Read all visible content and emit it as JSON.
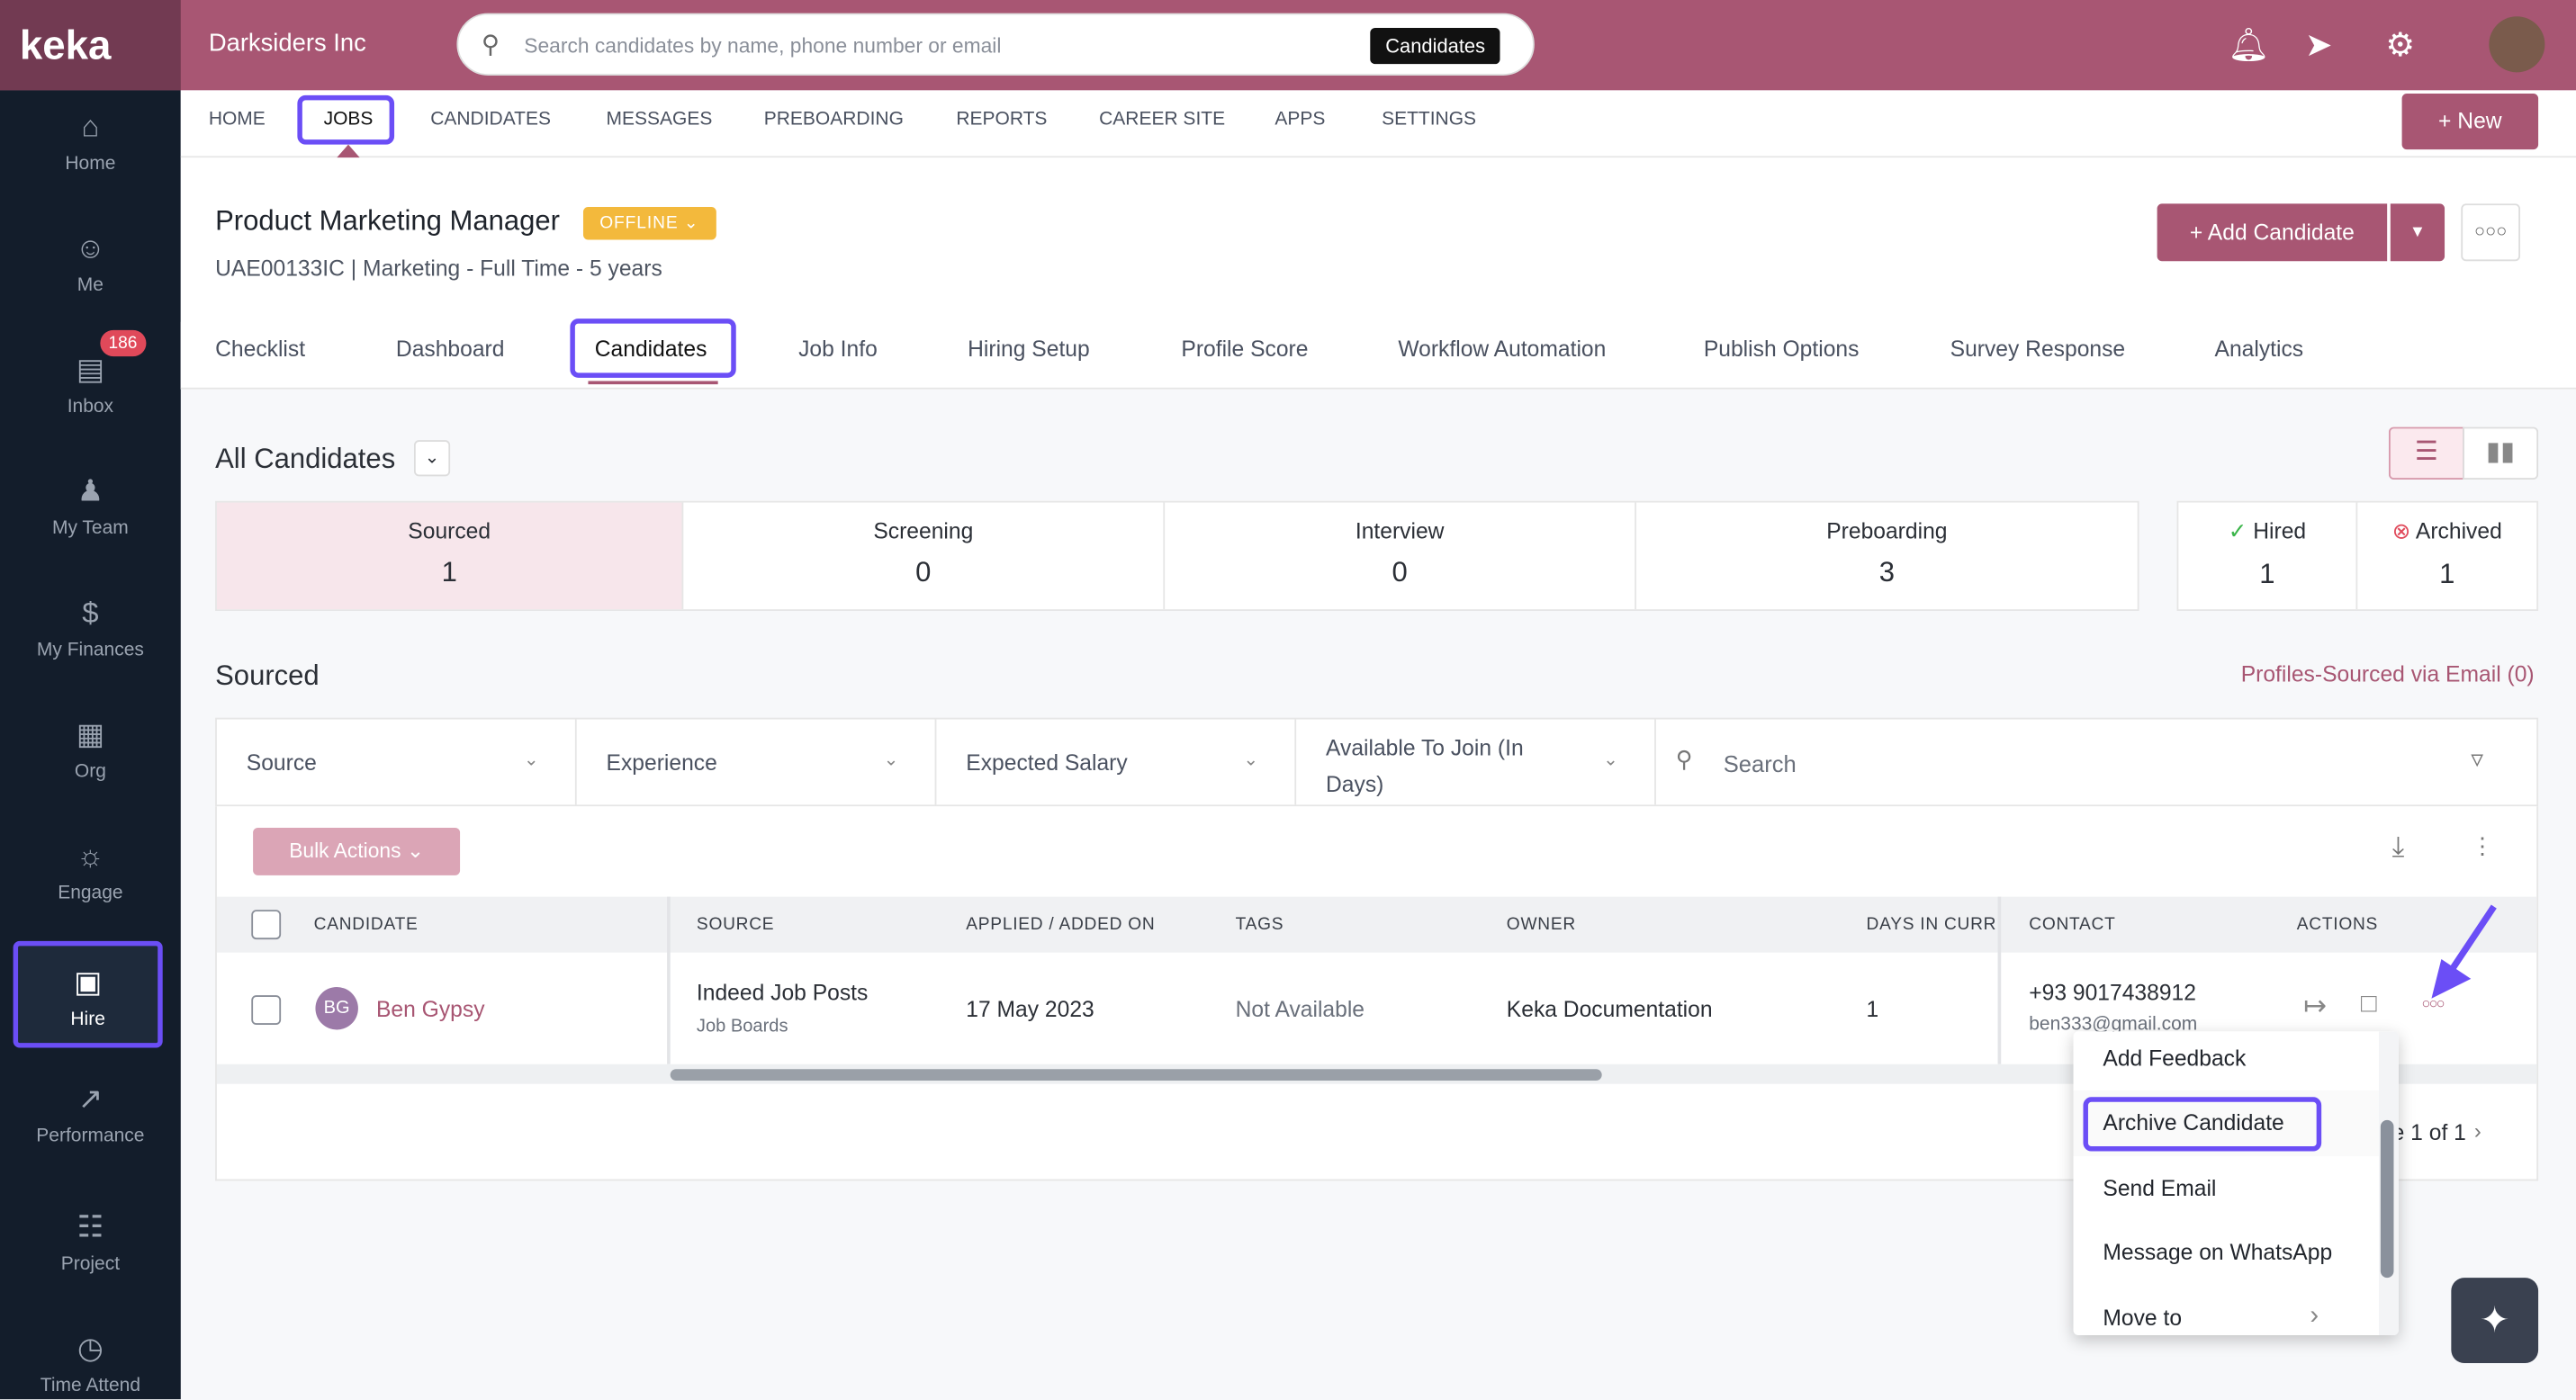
{
  "header": {
    "logo": "keka",
    "company": "Darksiders Inc",
    "search_placeholder": "Search candidates by name, phone number or email",
    "search_scope": "Candidates"
  },
  "sidebar": {
    "items": [
      {
        "label": "Home",
        "icon": "home-icon"
      },
      {
        "label": "Me",
        "icon": "user-icon"
      },
      {
        "label": "Inbox",
        "icon": "inbox-icon",
        "badge": "186"
      },
      {
        "label": "My Team",
        "icon": "team-icon"
      },
      {
        "label": "My Finances",
        "icon": "dollar-icon"
      },
      {
        "label": "Org",
        "icon": "org-icon"
      },
      {
        "label": "Engage",
        "icon": "engage-icon"
      },
      {
        "label": "Hire",
        "icon": "briefcase-icon",
        "active": true
      },
      {
        "label": "Performance",
        "icon": "trend-icon"
      },
      {
        "label": "Project",
        "icon": "clipboard-icon"
      },
      {
        "label": "Time Attend",
        "icon": "clock-icon"
      }
    ]
  },
  "nav": {
    "items": [
      "HOME",
      "JOBS",
      "CANDIDATES",
      "MESSAGES",
      "PREBOARDING",
      "REPORTS",
      "CAREER SITE",
      "APPS",
      "SETTINGS"
    ],
    "active": "JOBS",
    "new_label": "+ New"
  },
  "job": {
    "title": "Product Marketing Manager",
    "status": "OFFLINE",
    "subtitle": "UAE00133IC | Marketing - Full Time - 5 years",
    "add_candidate": "+ Add Candidate"
  },
  "tabs": [
    "Checklist",
    "Dashboard",
    "Candidates",
    "Job Info",
    "Hiring Setup",
    "Profile Score",
    "Workflow Automation",
    "Publish Options",
    "Survey Response",
    "Analytics"
  ],
  "candidates": {
    "heading": "All Candidates",
    "stages": [
      {
        "name": "Sourced",
        "count": "1"
      },
      {
        "name": "Screening",
        "count": "0"
      },
      {
        "name": "Interview",
        "count": "0"
      },
      {
        "name": "Preboarding",
        "count": "3"
      }
    ],
    "hired": {
      "name": "Hired",
      "count": "1"
    },
    "archived": {
      "name": "Archived",
      "count": "1"
    },
    "section": "Sourced",
    "profiles_link": "Profiles-Sourced via Email (0)",
    "filters": [
      "Source",
      "Experience",
      "Expected Salary",
      "Available To Join (In Days)"
    ],
    "search_placeholder": "Search",
    "bulk_actions": "Bulk Actions",
    "columns": [
      "CANDIDATE",
      "SOURCE",
      "APPLIED / ADDED ON",
      "TAGS",
      "OWNER",
      "DAYS IN CURRI",
      "CONTACT",
      "ACTIONS"
    ],
    "rows": [
      {
        "initials": "BG",
        "name": "Ben Gypsy",
        "source": "Indeed Job Posts",
        "source_sub": "Job Boards",
        "applied": "17 May 2023",
        "tags": "Not Available",
        "owner": "Keka Documentation",
        "days": "1",
        "phone": "+93 9017438912",
        "email": "ben333@gmail.com"
      }
    ],
    "pagination": "e 1 of 1"
  },
  "menu": {
    "items": [
      "Add Feedback",
      "Archive Candidate",
      "Send Email",
      "Message on WhatsApp",
      "Move to"
    ],
    "highlighted": "Archive Candidate"
  },
  "colors": {
    "brand": "#a85673",
    "sidebar": "#131d2b",
    "highlight": "#6b4ef6"
  }
}
